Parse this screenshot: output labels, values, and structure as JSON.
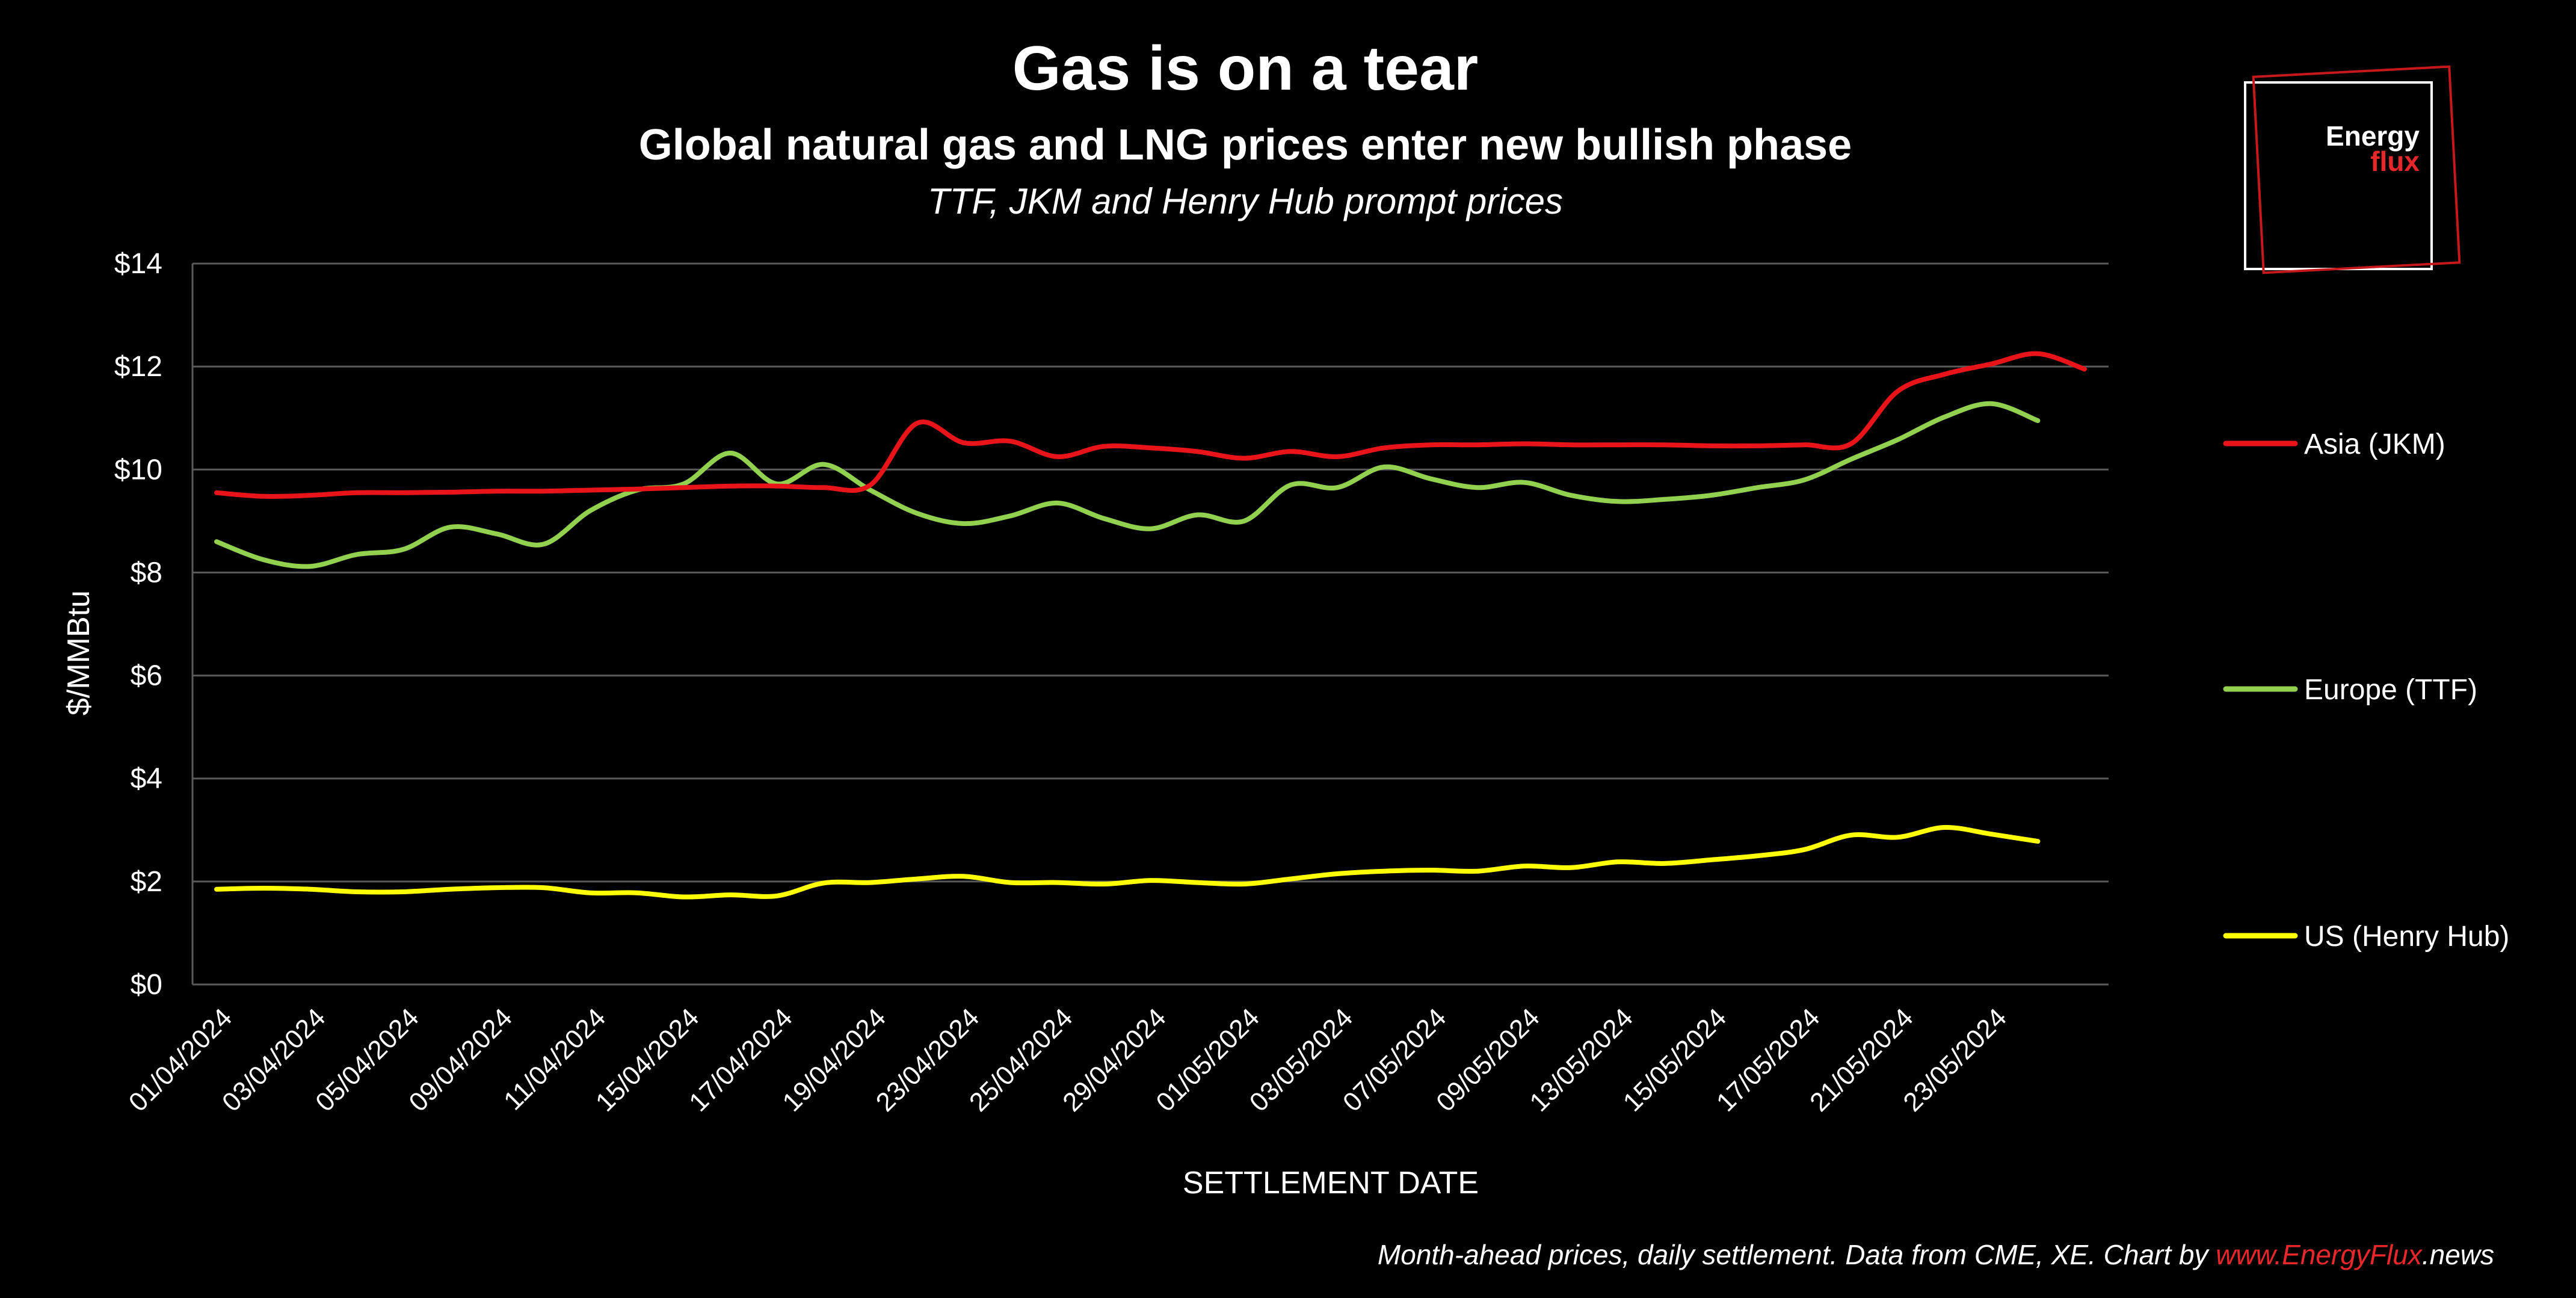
{
  "chart_data": {
    "type": "line",
    "title": "Gas is on a tear",
    "subtitle": "Global natural gas and LNG prices enter new bullish phase",
    "subtitle2": "TTF, JKM and Henry Hub prompt prices",
    "xlabel": "SETTLEMENT DATE",
    "ylabel": "$/MMBtu",
    "ylim": [
      0,
      14
    ],
    "yticks": [
      0,
      2,
      4,
      6,
      8,
      10,
      12,
      14
    ],
    "ytick_labels": [
      "$0",
      "$2",
      "$4",
      "$6",
      "$8",
      "$10",
      "$12",
      "$14"
    ],
    "x_tick_labels": [
      "01/04/2024",
      "03/04/2024",
      "05/04/2024",
      "09/04/2024",
      "11/04/2024",
      "15/04/2024",
      "17/04/2024",
      "19/04/2024",
      "23/04/2024",
      "25/04/2024",
      "29/04/2024",
      "01/05/2024",
      "03/05/2024",
      "07/05/2024",
      "09/05/2024",
      "13/05/2024",
      "15/05/2024",
      "17/05/2024",
      "21/05/2024",
      "23/05/2024"
    ],
    "grid": "horizontal",
    "legend_position": "right",
    "series": [
      {
        "name": "Asia (JKM)",
        "color": "#e8141a",
        "values": [
          9.55,
          9.48,
          9.5,
          9.55,
          9.55,
          9.56,
          9.58,
          9.58,
          9.6,
          9.62,
          9.65,
          9.68,
          9.68,
          9.65,
          9.7,
          10.9,
          10.52,
          10.55,
          10.25,
          10.45,
          10.42,
          10.35,
          10.22,
          10.35,
          10.25,
          10.42,
          10.48,
          10.48,
          10.5,
          10.48,
          10.48,
          10.48,
          10.46,
          10.46,
          10.48,
          10.5,
          11.52,
          11.85,
          12.05,
          12.25,
          11.95
        ]
      },
      {
        "name": "Europe (TTF)",
        "color": "#92d050",
        "values": [
          8.6,
          8.25,
          8.12,
          8.35,
          8.45,
          8.88,
          8.75,
          8.55,
          9.2,
          9.6,
          9.72,
          10.32,
          9.72,
          10.1,
          9.6,
          9.15,
          8.95,
          9.1,
          9.35,
          9.05,
          8.85,
          9.12,
          9.0,
          9.7,
          9.65,
          10.05,
          9.82,
          9.65,
          9.75,
          9.5,
          9.38,
          9.42,
          9.5,
          9.65,
          9.8,
          10.2,
          10.58,
          11.02,
          11.28,
          10.95,
          null
        ]
      },
      {
        "name": "US (Henry Hub)",
        "color": "#ffff00",
        "values": [
          1.85,
          1.87,
          1.85,
          1.8,
          1.8,
          1.85,
          1.88,
          1.88,
          1.78,
          1.78,
          1.7,
          1.74,
          1.72,
          1.97,
          1.98,
          2.05,
          2.1,
          1.98,
          1.98,
          1.95,
          2.02,
          1.98,
          1.95,
          2.05,
          2.15,
          2.2,
          2.22,
          2.2,
          2.3,
          2.27,
          2.38,
          2.35,
          2.42,
          2.5,
          2.62,
          2.9,
          2.86,
          3.05,
          2.92,
          2.78,
          null
        ]
      }
    ],
    "footer_prefix": "Month-ahead prices, daily settlement. Data from CME, XE. Chart by ",
    "footer_link": "www.EnergyFlux",
    "footer_link_suffix": ".news",
    "logo_word1": "Energy",
    "logo_word2": "flux"
  }
}
